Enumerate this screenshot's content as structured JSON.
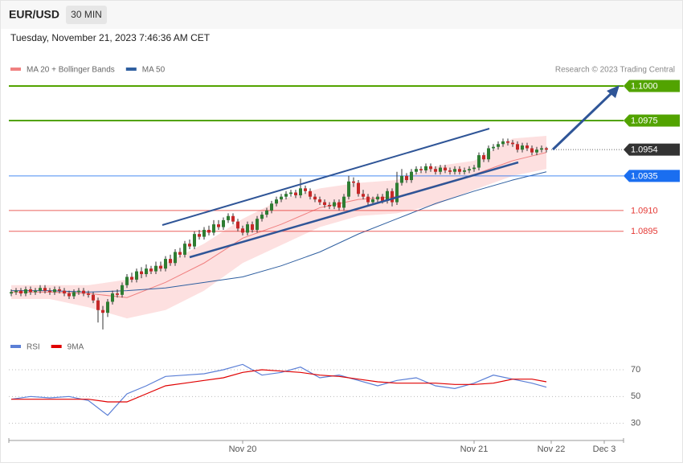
{
  "header": {
    "symbol": "EUR/USD",
    "interval": "30 MIN",
    "timestamp": "Tuesday, November 21, 2023 7:46:36 AM CET"
  },
  "chart_data": [
    {
      "type": "candlestick",
      "credit": "Research © 2023 Trading Central",
      "xlim": [
        -0.5,
        127
      ],
      "xticks": [
        {
          "value": 48,
          "label": "Nov 20"
        },
        {
          "value": 96,
          "label": "Nov 21"
        },
        {
          "value": 112,
          "label": "Nov 22"
        },
        {
          "value": 123,
          "label": "Dec 3"
        }
      ],
      "ylim": [
        1.0821,
        1.1007
      ],
      "up_color": "#2e7d32",
      "down_color": "#c62828",
      "open": [
        1.085,
        1.0851,
        1.0852,
        1.085,
        1.0853,
        1.0851,
        1.0852,
        1.0854,
        1.0852,
        1.0851,
        1.0853,
        1.0852,
        1.085,
        1.0848,
        1.0851,
        1.0852,
        1.085,
        1.0849,
        1.0845,
        1.0838,
        1.0836,
        1.0844,
        1.085,
        1.0849,
        1.0856,
        1.0862,
        1.086,
        1.0866,
        1.0864,
        1.0868,
        1.0866,
        1.087,
        1.0868,
        1.0875,
        1.0872,
        1.088,
        1.0878,
        1.0886,
        1.0884,
        1.0893,
        1.0891,
        1.0896,
        1.0894,
        1.09,
        1.0898,
        1.0903,
        1.0906,
        1.0902,
        1.0897,
        1.0894,
        1.09,
        1.0896,
        1.0904,
        1.0907,
        1.091,
        1.0915,
        1.0918,
        1.092,
        1.0922,
        1.0923,
        1.0921,
        1.0926,
        1.0924,
        1.092,
        1.0918,
        1.0916,
        1.0914,
        1.0913,
        1.0916,
        1.0912,
        1.092,
        1.0931,
        1.093,
        1.0922,
        1.092,
        1.0916,
        1.0918,
        1.092,
        1.0917,
        1.0924,
        1.0916,
        1.093,
        1.0935,
        1.0932,
        1.0938,
        1.094,
        1.0939,
        1.0942,
        1.094,
        1.0938,
        1.0941,
        1.0939,
        1.0938,
        1.094,
        1.0938,
        1.0939,
        1.094,
        1.0941,
        1.095,
        1.0947,
        1.0955,
        1.0956,
        1.0958,
        1.096,
        1.0959,
        1.0958,
        1.0954,
        1.0957,
        1.0955,
        1.0952,
        1.0954,
        1.0955
      ],
      "high": [
        1.0853,
        1.0854,
        1.0854,
        1.0855,
        1.0855,
        1.0854,
        1.0856,
        1.0856,
        1.0854,
        1.0855,
        1.0855,
        1.0854,
        1.0852,
        1.0853,
        1.0854,
        1.0854,
        1.0852,
        1.0851,
        1.0847,
        1.0841,
        1.0846,
        1.0852,
        1.0853,
        1.0858,
        1.0864,
        1.0865,
        1.0868,
        1.0869,
        1.0871,
        1.087,
        1.0873,
        1.0873,
        1.0877,
        1.0878,
        1.0882,
        1.0883,
        1.0888,
        1.0889,
        1.0895,
        1.0896,
        1.0898,
        1.0899,
        1.0903,
        1.0903,
        1.0905,
        1.0908,
        1.0908,
        1.0904,
        1.0899,
        1.0902,
        1.0902,
        1.0906,
        1.0909,
        1.0912,
        1.0917,
        1.092,
        1.0922,
        1.0924,
        1.0925,
        1.0925,
        1.0933,
        1.0928,
        1.0926,
        1.0922,
        1.092,
        1.0918,
        1.0916,
        1.0918,
        1.0918,
        1.0922,
        1.0935,
        1.0934,
        1.0932,
        1.0925,
        1.0922,
        1.092,
        1.0922,
        1.0922,
        1.0926,
        1.0926,
        1.0938,
        1.094,
        1.0937,
        1.094,
        1.0942,
        1.0942,
        1.0944,
        1.0944,
        1.0942,
        1.0943,
        1.0943,
        1.0941,
        1.0942,
        1.0942,
        1.0941,
        1.0942,
        1.0943,
        1.0952,
        1.0952,
        1.0957,
        1.0958,
        1.096,
        1.0962,
        1.0962,
        1.0961,
        1.096,
        1.0959,
        1.0959,
        1.0957,
        1.0956,
        1.0957,
        1.0956
      ],
      "low": [
        1.0848,
        1.0849,
        1.0848,
        1.0848,
        1.0849,
        1.0849,
        1.085,
        1.085,
        1.0849,
        1.0849,
        1.085,
        1.0848,
        1.0846,
        1.0846,
        1.0849,
        1.0848,
        1.0847,
        1.0843,
        1.0829,
        1.0824,
        1.0833,
        1.0842,
        1.0847,
        1.0847,
        1.0854,
        1.0858,
        1.0858,
        1.0861,
        1.0862,
        1.0864,
        1.0864,
        1.0866,
        1.0866,
        1.087,
        1.087,
        1.0876,
        1.0876,
        1.0882,
        1.0882,
        1.0889,
        1.0889,
        1.0892,
        1.0892,
        1.0896,
        1.0896,
        1.0901,
        1.09,
        1.0895,
        1.0892,
        1.0892,
        1.0894,
        1.0894,
        1.0902,
        1.0905,
        1.0908,
        1.0913,
        1.0916,
        1.0918,
        1.092,
        1.0919,
        1.0919,
        1.0922,
        1.0918,
        1.0916,
        1.0914,
        1.0912,
        1.0911,
        1.0911,
        1.091,
        1.091,
        1.0918,
        1.0927,
        1.092,
        1.0918,
        1.0914,
        1.0914,
        1.0916,
        1.0915,
        1.0915,
        1.0913,
        1.0914,
        1.0928,
        1.093,
        1.093,
        1.0936,
        1.0937,
        1.0937,
        1.0938,
        1.0936,
        1.0936,
        1.0937,
        1.0936,
        1.0936,
        1.0936,
        1.0936,
        1.0937,
        1.0938,
        1.0939,
        1.0945,
        1.0945,
        1.0953,
        1.0954,
        1.0956,
        1.0957,
        1.0956,
        1.0952,
        1.0952,
        1.0953,
        1.095,
        1.095,
        1.0952,
        1.0952
      ],
      "close": [
        1.0851,
        1.0852,
        1.085,
        1.0853,
        1.0851,
        1.0852,
        1.0854,
        1.0852,
        1.0851,
        1.0853,
        1.0852,
        1.085,
        1.0848,
        1.0851,
        1.0852,
        1.085,
        1.0849,
        1.0845,
        1.0838,
        1.0836,
        1.0844,
        1.085,
        1.0849,
        1.0856,
        1.0862,
        1.086,
        1.0866,
        1.0864,
        1.0868,
        1.0866,
        1.087,
        1.0868,
        1.0875,
        1.0872,
        1.088,
        1.0878,
        1.0886,
        1.0884,
        1.0893,
        1.0891,
        1.0896,
        1.0894,
        1.09,
        1.0898,
        1.0903,
        1.0906,
        1.0902,
        1.0897,
        1.0894,
        1.09,
        1.0896,
        1.0904,
        1.0907,
        1.091,
        1.0915,
        1.0918,
        1.092,
        1.0922,
        1.0923,
        1.0921,
        1.0926,
        1.0924,
        1.092,
        1.0918,
        1.0916,
        1.0914,
        1.0913,
        1.0916,
        1.0912,
        1.092,
        1.0931,
        1.093,
        1.0922,
        1.092,
        1.0916,
        1.0918,
        1.092,
        1.0917,
        1.0924,
        1.0916,
        1.093,
        1.0935,
        1.0932,
        1.0938,
        1.094,
        1.0939,
        1.0942,
        1.094,
        1.0938,
        1.0941,
        1.0939,
        1.0938,
        1.094,
        1.0938,
        1.0939,
        1.094,
        1.0941,
        1.095,
        1.0947,
        1.0955,
        1.0956,
        1.0958,
        1.096,
        1.0959,
        1.0958,
        1.0954,
        1.0957,
        1.0955,
        1.0952,
        1.0954,
        1.0955,
        1.0954
      ],
      "overlays": [
        {
          "name": "MA 20 + Bollinger Bands",
          "color": "#f08080",
          "band_color": "#fde0e0",
          "x": [
            0,
            8,
            16,
            24,
            32,
            40,
            48,
            56,
            64,
            72,
            80,
            88,
            96,
            104,
            111
          ],
          "values": [
            1.0851,
            1.0851,
            1.085,
            1.0847,
            1.0858,
            1.0872,
            1.089,
            1.09,
            1.0912,
            1.0918,
            1.092,
            1.0928,
            1.0936,
            1.0946,
            1.0952
          ],
          "upper": [
            1.0856,
            1.0856,
            1.0856,
            1.086,
            1.0872,
            1.0886,
            1.0904,
            1.0918,
            1.0926,
            1.093,
            1.0932,
            1.0942,
            1.0946,
            1.0962,
            1.0964
          ],
          "lower": [
            1.0846,
            1.0846,
            1.084,
            1.0832,
            1.0838,
            1.0852,
            1.0872,
            1.0885,
            1.0898,
            1.0906,
            1.0908,
            1.0914,
            1.0925,
            1.0935,
            1.094
          ]
        },
        {
          "name": "MA 50",
          "color": "#2f5fa0",
          "x": [
            0,
            8,
            16,
            24,
            32,
            40,
            48,
            56,
            64,
            72,
            80,
            88,
            96,
            104,
            111
          ],
          "values": [
            1.0852,
            1.0852,
            1.0851,
            1.0852,
            1.0854,
            1.0858,
            1.0862,
            1.087,
            1.088,
            1.0893,
            1.0904,
            1.0915,
            1.0924,
            1.0932,
            1.0938
          ]
        }
      ],
      "levels": [
        {
          "value": 1.1,
          "label": "1.1000",
          "color": "#52a300",
          "style": "box",
          "line": "solid"
        },
        {
          "value": 1.0975,
          "label": "1.0975",
          "color": "#52a300",
          "style": "box",
          "line": "solid"
        },
        {
          "value": 1.0954,
          "label": "1.0954",
          "color": "#333333",
          "style": "box",
          "line": "dotted"
        },
        {
          "value": 1.0935,
          "label": "1.0935",
          "color": "#1a6ef0",
          "style": "box",
          "line": "thin"
        },
        {
          "value": 1.091,
          "label": "1.0910",
          "color": "#e53935",
          "style": "text",
          "line": "thin"
        },
        {
          "value": 1.0895,
          "label": "1.0895",
          "color": "#e53935",
          "style": "text",
          "line": "thin"
        }
      ]
    },
    {
      "type": "line",
      "xlim": [
        -0.5,
        127
      ],
      "ylim": [
        22,
        79
      ],
      "yticks": [
        30,
        50,
        70
      ],
      "grid": true,
      "series": [
        {
          "name": "RSI",
          "color": "#5b7fd6",
          "x": [
            0,
            4,
            8,
            12,
            16,
            20,
            24,
            28,
            32,
            36,
            40,
            44,
            48,
            52,
            56,
            60,
            64,
            68,
            72,
            76,
            80,
            84,
            88,
            92,
            96,
            100,
            104,
            108,
            111
          ],
          "values": [
            48,
            50,
            49,
            50,
            47,
            36,
            52,
            58,
            65,
            66,
            67,
            70,
            74,
            66,
            68,
            72,
            64,
            66,
            62,
            58,
            62,
            64,
            58,
            56,
            60,
            66,
            63,
            60,
            57
          ]
        },
        {
          "name": "9MA",
          "color": "#e00000",
          "x": [
            0,
            4,
            8,
            12,
            16,
            20,
            24,
            28,
            32,
            36,
            40,
            44,
            48,
            52,
            56,
            60,
            64,
            68,
            72,
            76,
            80,
            84,
            88,
            92,
            96,
            100,
            104,
            108,
            111
          ],
          "values": [
            48,
            48,
            48,
            48,
            48,
            46,
            46,
            52,
            58,
            60,
            62,
            64,
            68,
            70,
            69,
            68,
            66,
            65,
            63,
            61,
            60,
            60,
            60,
            59,
            59,
            60,
            63,
            63,
            61
          ]
        }
      ]
    }
  ]
}
